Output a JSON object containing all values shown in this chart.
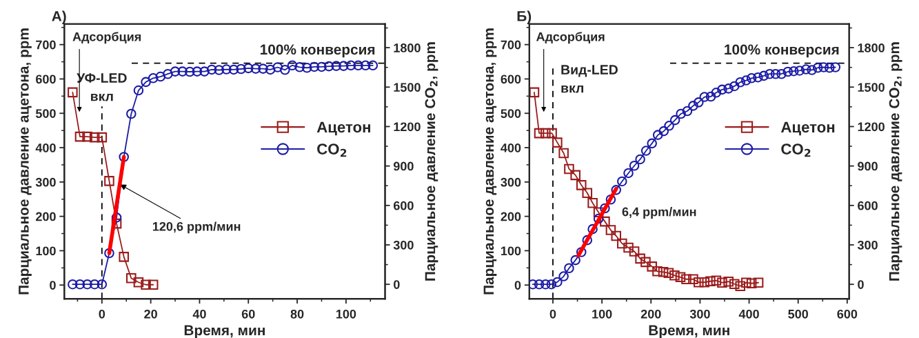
{
  "chart_data": [
    {
      "type": "line",
      "title": "А)",
      "xlabel": "Время, мин",
      "ylabel": "Парциальное давление ацетона, ppm",
      "y2label": "Парциальное давление CO$_{2}$, ppm",
      "xlim": [
        -15.4,
        116
      ],
      "xticks": [
        0,
        20,
        40,
        60,
        80,
        100
      ],
      "ylim": [
        -40,
        760
      ],
      "yticks": [
        0,
        100,
        200,
        300,
        400,
        500,
        600,
        700
      ],
      "y2lim": [
        -110,
        1980
      ],
      "y2ticks": [
        0,
        300,
        600,
        900,
        1200,
        1500,
        1800
      ],
      "legend": "right",
      "grid": false,
      "series": [
        {
          "name": "Ацетон",
          "color": "#9b1c1c",
          "marker": "square",
          "x": [
            -12,
            -9,
            -6,
            -3,
            0,
            3,
            6,
            9,
            12,
            15,
            18,
            21
          ],
          "values": [
            561,
            432,
            432,
            430,
            430,
            303,
            179,
            82,
            20,
            8,
            1,
            1
          ]
        },
        {
          "name": "CO$_{2}$",
          "color": "#1c1ca6",
          "marker": "circle",
          "axis": "y2",
          "x": [
            -12,
            -9,
            -6,
            -3,
            0,
            3,
            6,
            9,
            12,
            15,
            18,
            21,
            24,
            27,
            30,
            33,
            36,
            39,
            42,
            45,
            48,
            51,
            54,
            57,
            60,
            63,
            66,
            69,
            72,
            75,
            78,
            81,
            84,
            87,
            90,
            93,
            96,
            99,
            102,
            105,
            108,
            111
          ],
          "values": [
            0,
            0,
            0,
            0,
            0,
            237,
            508,
            969,
            1297,
            1475,
            1539,
            1568,
            1580,
            1600,
            1619,
            1619,
            1617,
            1619,
            1619,
            1633,
            1630,
            1635,
            1633,
            1638,
            1644,
            1640,
            1640,
            1633,
            1651,
            1631,
            1665,
            1652,
            1647,
            1654,
            1654,
            1658,
            1661,
            1661,
            1665,
            1665,
            1665,
            1665
          ]
        },
        {
          "type": "line",
          "color": "#ff0000",
          "axis": "y2",
          "x": [
            3,
            9
          ],
          "values": [
            237,
            969
          ]
        }
      ],
      "ref_lines": [
        {
          "axis": "x",
          "value": 0,
          "label": "УФ-LED\nвкл",
          "color": "#000000",
          "line_style": "dashed"
        },
        {
          "axis": "y2",
          "value": 1682,
          "label": "100% конверсия",
          "color": "#000000",
          "line_style": "dashed"
        }
      ],
      "annotations": [
        "Адсорбция",
        {
          "text": "120,6 ppm/мин",
          "x": 7.4,
          "y": 293
        }
      ]
    },
    {
      "type": "line",
      "title": "Б)",
      "xlabel": "Время, мин",
      "ylabel": "Парциальное давление ацетона, ppm",
      "y2label": "Парциальное давление CO$_{2}$, ppm",
      "xlim": [
        -48,
        604
      ],
      "xticks": [
        0,
        100,
        200,
        300,
        400,
        500,
        600
      ],
      "ylim": [
        -40,
        760
      ],
      "yticks": [
        0,
        100,
        200,
        300,
        400,
        500,
        600,
        700
      ],
      "y2lim": [
        -110,
        1980
      ],
      "y2ticks": [
        0,
        300,
        600,
        900,
        1200,
        1500,
        1800
      ],
      "legend": "right",
      "grid": false,
      "series": [
        {
          "name": "Ацетон",
          "color": "#9b1c1c",
          "marker": "square",
          "x": [
            -38,
            -28,
            -15,
            -2,
            9,
            22,
            33,
            46,
            58,
            70,
            81,
            93,
            106,
            118,
            129,
            141,
            154,
            166,
            178,
            189,
            202,
            213,
            225,
            236,
            248,
            260,
            272,
            286,
            297,
            309,
            321,
            333,
            345,
            358,
            370,
            382,
            394,
            405,
            419
          ],
          "values": [
            561,
            442,
            442,
            442,
            415,
            384,
            338,
            320,
            291,
            268,
            239,
            212,
            185,
            160,
            143,
            121,
            109,
            98,
            77,
            67,
            54,
            40,
            38,
            35,
            28,
            23,
            17,
            17,
            8,
            8,
            11,
            13,
            7,
            10,
            3,
            -3,
            7,
            5,
            7
          ]
        },
        {
          "name": "CO$_{2}$",
          "color": "#1c1ca6",
          "marker": "circle",
          "axis": "y2",
          "x": [
            -41,
            -28,
            -15,
            -3,
            9,
            22,
            33,
            46,
            58,
            70,
            81,
            93,
            106,
            118,
            129,
            141,
            154,
            166,
            178,
            190,
            202,
            214,
            226,
            237,
            249,
            261,
            274,
            286,
            297,
            309,
            322,
            333,
            345,
            358,
            370,
            382,
            394,
            405,
            418,
            430,
            442,
            454,
            466,
            479,
            491,
            503,
            516,
            528,
            540,
            552,
            564,
            576
          ],
          "values": [
            0,
            0,
            0,
            0,
            17,
            61,
            123,
            184,
            245,
            336,
            420,
            499,
            578,
            645,
            718,
            783,
            846,
            902,
            951,
            1016,
            1072,
            1136,
            1165,
            1206,
            1249,
            1297,
            1318,
            1358,
            1384,
            1425,
            1428,
            1458,
            1481,
            1489,
            1507,
            1537,
            1551,
            1568,
            1574,
            1586,
            1600,
            1600,
            1600,
            1617,
            1621,
            1625,
            1635,
            1630,
            1647,
            1651,
            1647,
            1651
          ]
        },
        {
          "type": "line",
          "color": "#ff0000",
          "axis": "y2",
          "x": [
            52,
            129
          ],
          "values": [
            219,
            727
          ]
        }
      ],
      "ref_lines": [
        {
          "axis": "x",
          "value": 0,
          "label": "Вид-LED\nвкл",
          "color": "#000000",
          "line_style": "dashed"
        },
        {
          "axis": "y2",
          "value": 1682,
          "label": "100% конверсия",
          "color": "#000000",
          "line_style": "dashed"
        }
      ],
      "annotations": [
        "Адсорбция",
        {
          "text": "6,4 ppm/мин",
          "x": 129,
          "y": 280
        }
      ]
    }
  ]
}
